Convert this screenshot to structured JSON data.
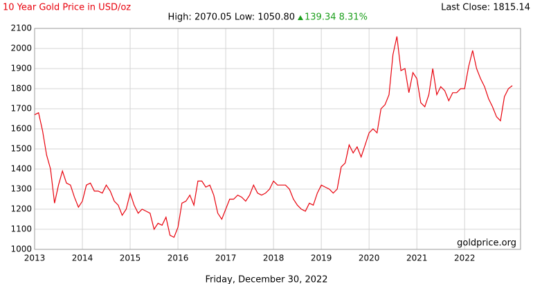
{
  "chart_data": {
    "type": "line",
    "title": "10 Year Gold Price in USD/oz",
    "high_low": "High: 2070.05 Low: 1050.80",
    "change": "139.34 8.31%",
    "last_close": "Last Close: 1815.14",
    "watermark": "goldprice.org",
    "date": "Friday, December 30, 2022",
    "color": "#e8000b",
    "x": [
      2013,
      2013.083,
      2013.167,
      2013.25,
      2013.333,
      2013.417,
      2013.5,
      2013.583,
      2013.667,
      2013.75,
      2013.833,
      2013.917,
      2014,
      2014.083,
      2014.167,
      2014.25,
      2014.333,
      2014.417,
      2014.5,
      2014.583,
      2014.667,
      2014.75,
      2014.833,
      2014.917,
      2015,
      2015.083,
      2015.167,
      2015.25,
      2015.333,
      2015.417,
      2015.5,
      2015.583,
      2015.667,
      2015.75,
      2015.833,
      2015.917,
      2016,
      2016.083,
      2016.167,
      2016.25,
      2016.333,
      2016.417,
      2016.5,
      2016.583,
      2016.667,
      2016.75,
      2016.833,
      2016.917,
      2017,
      2017.083,
      2017.167,
      2017.25,
      2017.333,
      2017.417,
      2017.5,
      2017.583,
      2017.667,
      2017.75,
      2017.833,
      2017.917,
      2018,
      2018.083,
      2018.167,
      2018.25,
      2018.333,
      2018.417,
      2018.5,
      2018.583,
      2018.667,
      2018.75,
      2018.833,
      2018.917,
      2019,
      2019.083,
      2019.167,
      2019.25,
      2019.333,
      2019.417,
      2019.5,
      2019.583,
      2019.667,
      2019.75,
      2019.833,
      2019.917,
      2020,
      2020.083,
      2020.167,
      2020.25,
      2020.333,
      2020.417,
      2020.5,
      2020.583,
      2020.667,
      2020.75,
      2020.833,
      2020.917,
      2021,
      2021.083,
      2021.167,
      2021.25,
      2021.333,
      2021.417,
      2021.5,
      2021.583,
      2021.667,
      2021.75,
      2021.833,
      2021.917,
      2022,
      2022.083,
      2022.167,
      2022.25,
      2022.333,
      2022.417,
      2022.5,
      2022.583,
      2022.667,
      2022.75,
      2022.833,
      2022.917,
      2022.997
    ],
    "values": [
      1670,
      1680,
      1590,
      1470,
      1400,
      1230,
      1320,
      1390,
      1330,
      1320,
      1260,
      1210,
      1240,
      1320,
      1330,
      1290,
      1290,
      1280,
      1320,
      1290,
      1240,
      1220,
      1170,
      1200,
      1280,
      1220,
      1180,
      1200,
      1190,
      1180,
      1100,
      1130,
      1120,
      1160,
      1070,
      1060,
      1110,
      1230,
      1240,
      1270,
      1220,
      1340,
      1340,
      1310,
      1320,
      1270,
      1180,
      1150,
      1200,
      1250,
      1250,
      1270,
      1260,
      1240,
      1270,
      1320,
      1280,
      1270,
      1280,
      1300,
      1340,
      1320,
      1320,
      1320,
      1300,
      1250,
      1220,
      1200,
      1190,
      1230,
      1220,
      1280,
      1320,
      1310,
      1300,
      1280,
      1300,
      1410,
      1430,
      1520,
      1480,
      1510,
      1460,
      1520,
      1580,
      1600,
      1580,
      1700,
      1720,
      1770,
      1970,
      2060,
      1890,
      1900,
      1780,
      1880,
      1850,
      1730,
      1710,
      1770,
      1900,
      1770,
      1810,
      1790,
      1740,
      1780,
      1780,
      1800,
      1800,
      1910,
      1990,
      1900,
      1850,
      1810,
      1750,
      1710,
      1660,
      1640,
      1760,
      1800,
      1815.14
    ],
    "xlim": [
      2013,
      2023.17
    ],
    "xticks": [
      2013,
      2014,
      2015,
      2016,
      2017,
      2018,
      2019,
      2020,
      2021,
      2022
    ],
    "ylim": [
      1000,
      2100
    ],
    "yticks": [
      1000,
      1100,
      1200,
      1300,
      1400,
      1500,
      1600,
      1700,
      1800,
      1900,
      2000,
      2100
    ],
    "grid": true
  }
}
